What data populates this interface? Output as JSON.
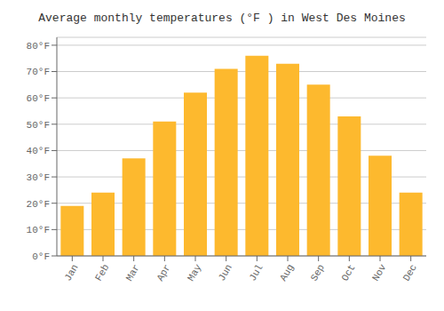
{
  "chart_data": {
    "type": "bar",
    "title": "Average monthly temperatures (°F ) in West Des Moines",
    "categories": [
      "Jan",
      "Feb",
      "Mar",
      "Apr",
      "May",
      "Jun",
      "Jul",
      "Aug",
      "Sep",
      "Oct",
      "Nov",
      "Dec"
    ],
    "values": [
      19,
      24,
      37,
      51,
      62,
      71,
      76,
      73,
      65,
      53,
      38,
      24
    ],
    "color": "#FDB92E",
    "ylim": [
      0,
      83
    ],
    "yticks": [
      {
        "value": 0,
        "label": "0°F"
      },
      {
        "value": 10,
        "label": "10°F"
      },
      {
        "value": 20,
        "label": "20°F"
      },
      {
        "value": 30,
        "label": "30°F"
      },
      {
        "value": 40,
        "label": "40°F"
      },
      {
        "value": 50,
        "label": "50°F"
      },
      {
        "value": 60,
        "label": "60°F"
      },
      {
        "value": 70,
        "label": "70°F"
      },
      {
        "value": 80,
        "label": "80°F"
      }
    ],
    "grid": true
  }
}
